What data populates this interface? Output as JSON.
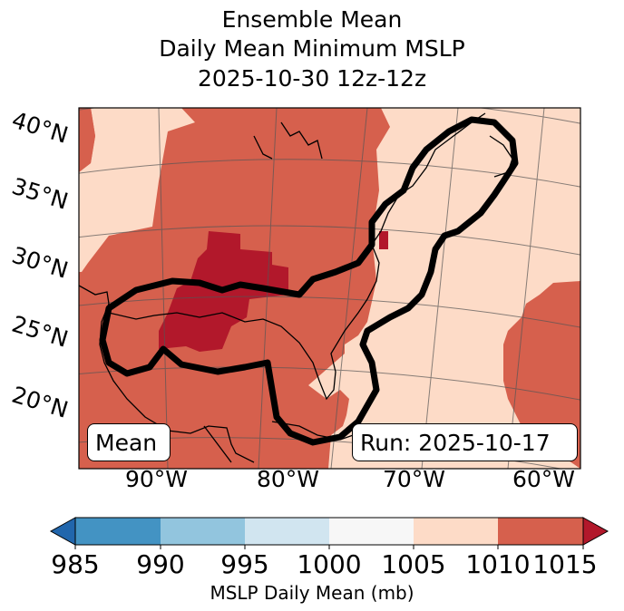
{
  "title": {
    "line1": "Ensemble Mean",
    "line2": "Daily Mean Minimum MSLP",
    "line3": "2025-10-30 12z-12z"
  },
  "latitude_labels": [
    "40°N",
    "35°N",
    "30°N",
    "25°N",
    "20°N"
  ],
  "longitude_labels": [
    "90°W",
    "80°W",
    "70°W",
    "60°W"
  ],
  "mean_label": "Mean",
  "run_label": "Run: 2025-10-17",
  "colorbar": {
    "label": "MSLP Daily Mean (mb)",
    "ticks": [
      "985",
      "990",
      "995",
      "1000",
      "1005",
      "1010",
      "1015"
    ],
    "colors": [
      "#2166ac",
      "#4393c3",
      "#92c5de",
      "#d1e5f0",
      "#f7f7f7",
      "#fddbc7",
      "#d6604d",
      "#b2182b"
    ],
    "extend": "both"
  },
  "map": {
    "region": "Gulf of Mexico and US East Coast",
    "fill_colors": {
      "1005_1010": "#fddbc7",
      "1010_1015": "#d6604d",
      "above_1015": "#b2182b"
    },
    "contour_color": "#000000"
  }
}
